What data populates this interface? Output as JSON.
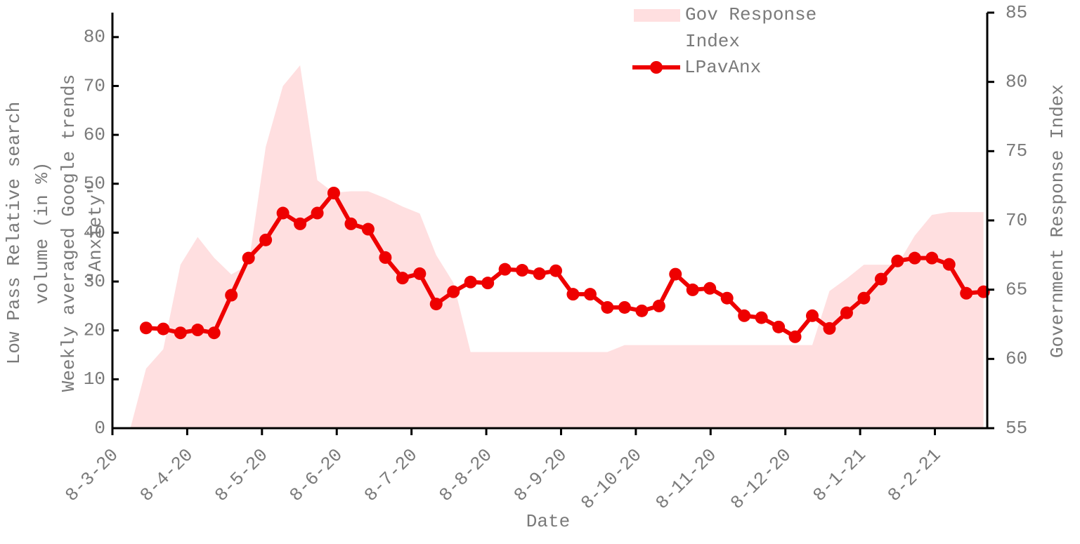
{
  "chart_data": {
    "type": "line",
    "xlabel": "Date",
    "ylabel": [
      "Low Pass Relative search",
      "volume (in %)"
    ],
    "annotations": [
      "Weekly averaged Google trends",
      "\"Anxiety\""
    ],
    "ylabel2": "Government Response Index",
    "xlim": [
      0,
      11.7
    ],
    "xticks": [
      {
        "value": 0,
        "label": "8-3-20"
      },
      {
        "value": 1,
        "label": "8-4-20"
      },
      {
        "value": 2,
        "label": "8-5-20"
      },
      {
        "value": 3,
        "label": "8-6-20"
      },
      {
        "value": 4,
        "label": "8-7-20"
      },
      {
        "value": 5,
        "label": "8-8-20"
      },
      {
        "value": 6,
        "label": "8-9-20"
      },
      {
        "value": 7,
        "label": "8-10-20"
      },
      {
        "value": 8,
        "label": "8-11-20"
      },
      {
        "value": 9,
        "label": "8-12-20"
      },
      {
        "value": 10,
        "label": "8-1-21"
      },
      {
        "value": 11,
        "label": "8-2-21"
      }
    ],
    "ylim": [
      0,
      85
    ],
    "yticks": [
      0,
      10,
      20,
      30,
      40,
      50,
      60,
      70,
      80
    ],
    "y2lim": [
      55,
      85
    ],
    "y2ticks": [
      55,
      60,
      65,
      70,
      75,
      80,
      85
    ],
    "series": [
      {
        "name": "Gov Response Index",
        "kind": "area",
        "axis": "y2",
        "color": "#ffdfe0",
        "x": [
          0.24,
          0.45,
          0.68,
          0.91,
          1.14,
          1.36,
          1.59,
          1.82,
          2.05,
          2.28,
          2.51,
          2.74,
          2.96,
          3.19,
          3.42,
          3.65,
          3.88,
          4.11,
          4.33,
          4.56,
          4.79,
          5.02,
          5.25,
          5.48,
          5.71,
          5.93,
          6.16,
          6.39,
          6.62,
          6.85,
          7.08,
          7.31,
          7.53,
          7.76,
          7.99,
          8.22,
          8.45,
          8.68,
          8.91,
          9.13,
          9.36,
          9.59,
          9.82,
          10.05,
          10.28,
          10.5,
          10.73,
          10.96,
          11.19,
          11.42,
          11.65
        ],
        "values": [
          55,
          59.3,
          60.7,
          66.8,
          68.8,
          67.3,
          66.1,
          66.8,
          75.3,
          79.7,
          81.2,
          72.9,
          72.0,
          72.1,
          72.1,
          71.6,
          71.0,
          70.5,
          67.5,
          65.5,
          60.5,
          60.5,
          60.5,
          60.5,
          60.5,
          60.5,
          60.5,
          60.5,
          60.5,
          61.0,
          61.0,
          61.0,
          61.0,
          61.0,
          61.0,
          61.0,
          61.0,
          61.0,
          61.0,
          61.0,
          61.0,
          64.9,
          65.8,
          66.8,
          66.8,
          66.8,
          68.9,
          70.4,
          70.6,
          70.6,
          70.6
        ]
      },
      {
        "name": "LPavAnx",
        "kind": "line",
        "color": "#ee0000",
        "x": [
          0.45,
          0.68,
          0.91,
          1.14,
          1.36,
          1.59,
          1.82,
          2.05,
          2.28,
          2.51,
          2.74,
          2.96,
          3.19,
          3.42,
          3.65,
          3.88,
          4.11,
          4.33,
          4.56,
          4.79,
          5.02,
          5.25,
          5.48,
          5.71,
          5.93,
          6.16,
          6.39,
          6.62,
          6.85,
          7.08,
          7.31,
          7.53,
          7.76,
          7.99,
          8.22,
          8.45,
          8.68,
          8.91,
          9.13,
          9.36,
          9.59,
          9.82,
          10.05,
          10.28,
          10.5,
          10.73,
          10.96,
          11.19,
          11.42,
          11.65
        ],
        "values": [
          20.5,
          20.3,
          19.5,
          20.1,
          19.5,
          27.2,
          34.8,
          38.5,
          44.0,
          41.8,
          44.0,
          48.1,
          41.8,
          40.7,
          34.9,
          30.7,
          31.6,
          25.4,
          27.9,
          29.9,
          29.7,
          32.5,
          32.3,
          31.6,
          32.2,
          27.4,
          27.4,
          24.7,
          24.7,
          24.0,
          25.0,
          31.5,
          28.3,
          28.6,
          26.6,
          23.0,
          22.6,
          20.7,
          18.7,
          23.0,
          20.4,
          23.6,
          26.6,
          30.5,
          34.2,
          34.8,
          34.8,
          33.5,
          27.6,
          27.9
        ]
      }
    ]
  }
}
